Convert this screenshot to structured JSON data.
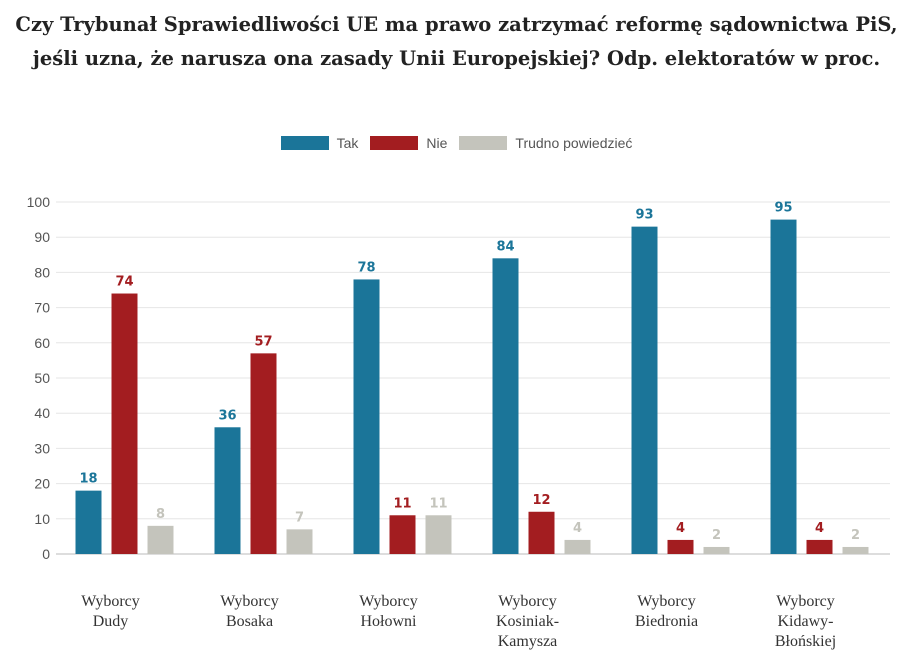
{
  "title_lines": [
    "Czy Trybunał Sprawiedliwości UE ma prawo zatrzymać reformę sądownictwa PiS,",
    "jeśli uzna, że narusza ona zasady Unii Europejskiej? Odp. elektoratów w proc."
  ],
  "chart_data": {
    "type": "bar",
    "title": "Czy Trybunał Sprawiedliwości UE ma prawo zatrzymać reformę sądownictwa PiS, jeśli uzna, że narusza ona zasady Unii Europejskiej? Odp. elektoratów w proc.",
    "categories": [
      [
        "Wyborcy",
        "Dudy"
      ],
      [
        "Wyborcy",
        "Bosaka"
      ],
      [
        "Wyborcy",
        "Hołowni"
      ],
      [
        "Wyborcy",
        "Kosiniak-",
        "Kamysza"
      ],
      [
        "Wyborcy",
        "Biedronia"
      ],
      [
        "Wyborcy",
        "Kidawy-",
        "Błońskiej"
      ]
    ],
    "series": [
      {
        "name": "Tak",
        "color": "#1b7599",
        "values": [
          18,
          36,
          78,
          84,
          93,
          95
        ]
      },
      {
        "name": "Nie",
        "color": "#a31d20",
        "values": [
          74,
          57,
          11,
          12,
          4,
          4
        ]
      },
      {
        "name": "Trudno powiedzieć",
        "color": "#c4c4bc",
        "values": [
          8,
          7,
          11,
          4,
          2,
          2
        ]
      }
    ],
    "ylim": [
      0,
      100
    ],
    "yticks": [
      "0",
      "10",
      "20",
      "30",
      "40",
      "50",
      "60",
      "70",
      "80",
      "90",
      "100"
    ],
    "xlabel": "",
    "ylabel": "",
    "grid": true,
    "legend_position": "top-center"
  }
}
